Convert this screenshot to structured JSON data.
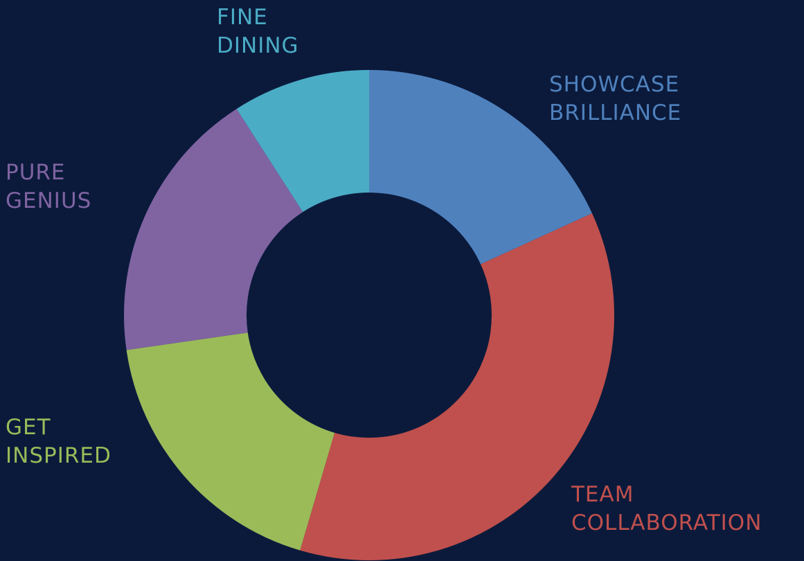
{
  "chart_data": {
    "type": "donut",
    "categories": [
      "SHOWCASE BRILLIANCE",
      "TEAM COLLABORATION",
      "GET INSPIRED",
      "PURE GENIUS",
      "FINE DINING"
    ],
    "values": [
      18,
      36,
      18,
      18,
      9
    ],
    "colors": [
      "#4f81bd",
      "#c0504d",
      "#9bbb59",
      "#8064a2",
      "#4bacc6"
    ]
  }
}
